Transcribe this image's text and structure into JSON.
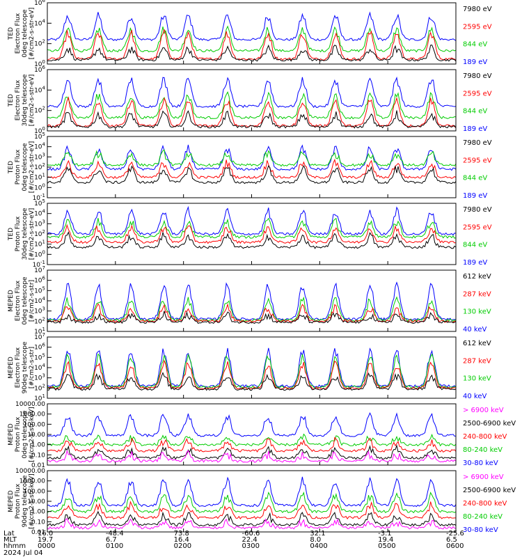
{
  "colors": {
    "blue": "#0000ff",
    "red": "#ff0000",
    "green": "#00cc00",
    "black": "#000000",
    "magenta": "#ff00ff"
  },
  "chart_data": [
    {
      "type": "line",
      "ylabel": "TED\nElectron Flux\n0deg telescope\n[#/cm2-s-str-eV]",
      "log_scale": true,
      "ytick_labels": [
        "10^0",
        "10^2",
        "10^4",
        "10^6"
      ],
      "ytick_exps": [
        0,
        2,
        4,
        6
      ],
      "ylim_exp": [
        0,
        6
      ],
      "series": [
        {
          "name": "7980 eV",
          "color": "black",
          "base_exp": 0.4,
          "peak_exp": 1.5
        },
        {
          "name": "2595 eV",
          "color": "red",
          "base_exp": 0.5,
          "peak_exp": 3.0
        },
        {
          "name": "844 eV",
          "color": "green",
          "base_exp": 1.3,
          "peak_exp": 3.4
        },
        {
          "name": "189 eV",
          "color": "blue",
          "base_exp": 2.4,
          "peak_exp": 4.7
        }
      ]
    },
    {
      "type": "line",
      "ylabel": "TED\nElectron Flux\n30deg telescope\n[#/cm2-s-str-eV]",
      "log_scale": true,
      "ytick_labels": [
        "10^0",
        "10^2",
        "10^4",
        "10^6"
      ],
      "ytick_exps": [
        0,
        2,
        4,
        6
      ],
      "ylim_exp": [
        0,
        6
      ],
      "series": [
        {
          "name": "7980 eV",
          "color": "black",
          "base_exp": 0.4,
          "peak_exp": 1.6
        },
        {
          "name": "2595 eV",
          "color": "red",
          "base_exp": 0.5,
          "peak_exp": 3.0
        },
        {
          "name": "844 eV",
          "color": "green",
          "base_exp": 1.3,
          "peak_exp": 3.5
        },
        {
          "name": "189 eV",
          "color": "blue",
          "base_exp": 2.4,
          "peak_exp": 5.0
        }
      ]
    },
    {
      "type": "line",
      "ylabel": "TED\nProton Flux\n0deg telescope\n[#/cm2-s-str-eV]",
      "log_scale": true,
      "ytick_labels": [
        "10^-1",
        "10^0",
        "10^1",
        "10^2",
        "10^3",
        "10^4",
        "10^5"
      ],
      "ytick_exps": [
        -1,
        0,
        1,
        2,
        3,
        4,
        5
      ],
      "ylim_exp": [
        -1,
        5
      ],
      "series": [
        {
          "name": "7980 eV",
          "color": "black",
          "base_exp": 0.5,
          "peak_exp": 1.8
        },
        {
          "name": "2595 eV",
          "color": "red",
          "base_exp": 1.0,
          "peak_exp": 2.4
        },
        {
          "name": "844 eV",
          "color": "green",
          "base_exp": 2.2,
          "peak_exp": 3.3
        },
        {
          "name": "189 eV",
          "color": "blue",
          "base_exp": 1.8,
          "peak_exp": 3.8
        }
      ]
    },
    {
      "type": "line",
      "ylabel": "TED\nProton Flux\n30deg telescope\n[#/cm2-s-str-eV]",
      "log_scale": true,
      "ytick_labels": [
        "10^-1",
        "10^0",
        "10^1",
        "10^2",
        "10^3",
        "10^4",
        "10^5"
      ],
      "ytick_exps": [
        -1,
        0,
        1,
        2,
        3,
        4,
        5
      ],
      "ylim_exp": [
        -1,
        5
      ],
      "series": [
        {
          "name": "7980 eV",
          "color": "black",
          "base_exp": 0.7,
          "peak_exp": 1.8
        },
        {
          "name": "2595 eV",
          "color": "red",
          "base_exp": 1.2,
          "peak_exp": 2.6
        },
        {
          "name": "844 eV",
          "color": "green",
          "base_exp": 1.7,
          "peak_exp": 3.2
        },
        {
          "name": "189 eV",
          "color": "blue",
          "base_exp": 2.0,
          "peak_exp": 4.2
        }
      ]
    },
    {
      "type": "line",
      "ylabel": "MEPED\nElectron Flux\n0deg telescope\n[#/cm2-s-str]",
      "log_scale": true,
      "ytick_labels": [
        "10^1",
        "10^2",
        "10^3",
        "10^4",
        "10^5",
        "10^6",
        "10^7"
      ],
      "ytick_exps": [
        1,
        2,
        3,
        4,
        5,
        6,
        7
      ],
      "ylim_exp": [
        1,
        7
      ],
      "series": [
        {
          "name": "612 keV",
          "color": "black",
          "base_exp": 1.9,
          "peak_exp": 2.6
        },
        {
          "name": "287 keV",
          "color": "red",
          "base_exp": 2.0,
          "peak_exp": 3.3
        },
        {
          "name": "130 keV",
          "color": "green",
          "base_exp": 2.1,
          "peak_exp": 4.0
        },
        {
          "name": "40 keV",
          "color": "blue",
          "base_exp": 2.2,
          "peak_exp": 5.4
        }
      ]
    },
    {
      "type": "line",
      "ylabel": "MEPED\nElectron Flux\n90deg telescope\n[#/cm2-s-str]",
      "log_scale": true,
      "ytick_labels": [
        "10^1",
        "10^2",
        "10^3",
        "10^4",
        "10^5",
        "10^6",
        "10^7"
      ],
      "ytick_exps": [
        1,
        2,
        3,
        4,
        5,
        6,
        7
      ],
      "ylim_exp": [
        1,
        7
      ],
      "series": [
        {
          "name": "612 keV",
          "color": "black",
          "base_exp": 1.9,
          "peak_exp": 3.2
        },
        {
          "name": "287 keV",
          "color": "red",
          "base_exp": 2.0,
          "peak_exp": 4.3
        },
        {
          "name": "130 keV",
          "color": "green",
          "base_exp": 2.1,
          "peak_exp": 5.0
        },
        {
          "name": "40 keV",
          "color": "blue",
          "base_exp": 2.2,
          "peak_exp": 5.6
        }
      ]
    },
    {
      "type": "line",
      "ylabel": "MEPED\nProton Flux\n0deg telescope\n[#/cm2-s-str-keV]",
      "log_scale": true,
      "ytick_labels": [
        "0.01",
        "0.10",
        "1.00",
        "10.00",
        "100.00",
        "1000.00",
        "10000.00"
      ],
      "ytick_exps": [
        -2,
        -1,
        0,
        1,
        2,
        3,
        4
      ],
      "ylim_exp": [
        -2,
        4
      ],
      "series": [
        {
          "name": "> 6900 keV",
          "color": "magenta",
          "base_exp": -1.6,
          "peak_exp": -1.0
        },
        {
          "name": "2500-6900 keV",
          "color": "black",
          "base_exp": -1.3,
          "peak_exp": -0.5
        },
        {
          "name": "240-800 keV",
          "color": "red",
          "base_exp": -0.6,
          "peak_exp": 0.3
        },
        {
          "name": "80-240 keV",
          "color": "green",
          "base_exp": 0.0,
          "peak_exp": 0.7
        },
        {
          "name": "30-80 keV",
          "color": "blue",
          "base_exp": 0.9,
          "peak_exp": 2.8
        }
      ]
    },
    {
      "type": "line",
      "ylabel": "MEPED\nProton Flux\n90deg telescope\n[#/cm2-s-str-keV]",
      "log_scale": true,
      "ytick_labels": [
        "0.01",
        "0.10",
        "1.00",
        "10.00",
        "100.00",
        "1000.00",
        "10000.00"
      ],
      "ytick_exps": [
        -2,
        -1,
        0,
        1,
        2,
        3,
        4
      ],
      "ylim_exp": [
        -2,
        4
      ],
      "series": [
        {
          "name": "> 6900 keV",
          "color": "magenta",
          "base_exp": -1.6,
          "peak_exp": -1.0
        },
        {
          "name": "2500-6900 keV",
          "color": "black",
          "base_exp": -1.3,
          "peak_exp": -0.4
        },
        {
          "name": "240-800 keV",
          "color": "red",
          "base_exp": -0.6,
          "peak_exp": 0.6
        },
        {
          "name": "80-240 keV",
          "color": "green",
          "base_exp": 0.0,
          "peak_exp": 1.5
        },
        {
          "name": "30-80 keV",
          "color": "blue",
          "base_exp": 0.6,
          "peak_exp": 3.0
        }
      ]
    }
  ],
  "x_axis": {
    "rows": [
      "Lat",
      "MLT",
      "hhmm"
    ],
    "date": "2024 Jul 04",
    "ticks": [
      {
        "lat": "16.0",
        "mlt": "19.7",
        "hhmm": "0000"
      },
      {
        "lat": "-48.4",
        "mlt": "6.7",
        "hhmm": "0100"
      },
      {
        "lat": "73.8",
        "mlt": "16.4",
        "hhmm": "0200"
      },
      {
        "lat": "-60.6",
        "mlt": "22.4",
        "hhmm": "0300"
      },
      {
        "lat": "32.1",
        "mlt": "8.0",
        "hhmm": "0400"
      },
      {
        "lat": "-3.1",
        "mlt": "19.4",
        "hhmm": "0500"
      },
      {
        "lat": "-25.6",
        "mlt": "6.5",
        "hhmm": "0600"
      }
    ]
  }
}
